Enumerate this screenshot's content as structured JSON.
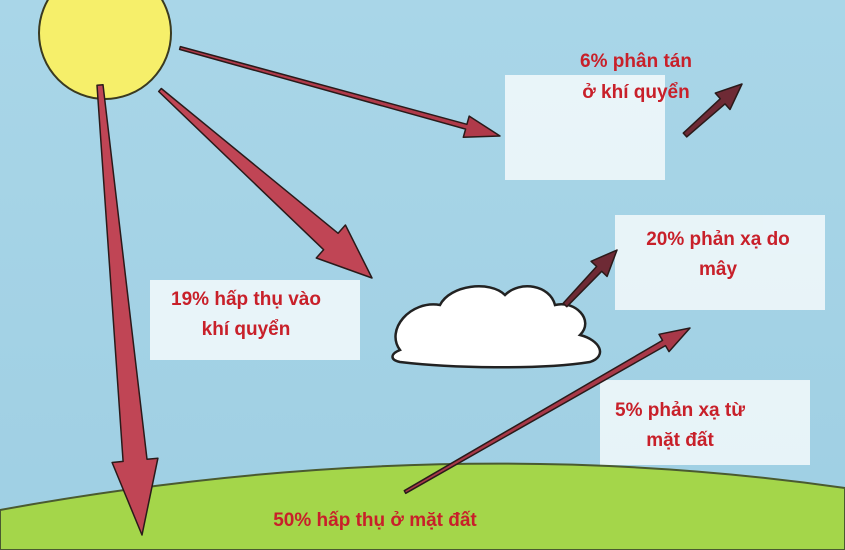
{
  "labels": [
    {
      "lines": [
        "6% phân tán",
        "ở khí quyển"
      ]
    },
    {
      "lines": [
        "20% phản xạ do",
        "mây"
      ]
    },
    {
      "lines": [
        "19% hấp thụ vào",
        "khí quyển"
      ]
    },
    {
      "lines": [
        "5% phản xạ từ",
        "mặt đất"
      ]
    },
    {
      "lines": [
        "50% hấp thụ ở mặt đất"
      ]
    }
  ]
}
